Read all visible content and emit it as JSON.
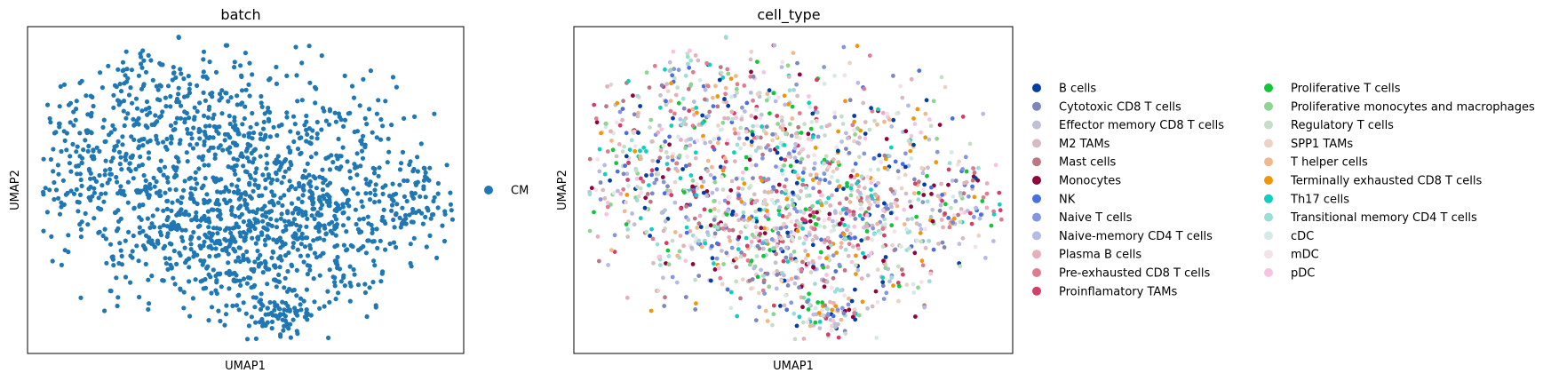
{
  "chart_data": [
    {
      "type": "scatter",
      "title": "batch",
      "xlabel": "UMAP1",
      "ylabel": "UMAP2",
      "xlim": [
        0,
        1
      ],
      "ylim": [
        0,
        1
      ],
      "grid": false,
      "legend_position": "right",
      "series": [
        {
          "name": "CM",
          "color": "#1f77b4"
        }
      ]
    },
    {
      "type": "scatter",
      "title": "cell_type",
      "xlabel": "UMAP1",
      "ylabel": "UMAP2",
      "xlim": [
        0,
        1
      ],
      "ylim": [
        0,
        1
      ],
      "grid": false,
      "legend_position": "right",
      "series": [
        {
          "name": "B cells",
          "color": "#023fa5"
        },
        {
          "name": "Cytotoxic CD8 T cells",
          "color": "#7d87b9"
        },
        {
          "name": "Effector memory CD8 T cells",
          "color": "#bec1d4"
        },
        {
          "name": "M2 TAMs",
          "color": "#d6bcc0"
        },
        {
          "name": "Mast cells",
          "color": "#bb7784"
        },
        {
          "name": "Monocytes",
          "color": "#8e063b"
        },
        {
          "name": "NK",
          "color": "#4a6fe3"
        },
        {
          "name": "Naive T cells",
          "color": "#8595e1"
        },
        {
          "name": "Naive-memory CD4 T cells",
          "color": "#b5bbe3"
        },
        {
          "name": "Plasma B cells",
          "color": "#e6afb9"
        },
        {
          "name": "Pre-exhausted CD8 T cells",
          "color": "#e07b91"
        },
        {
          "name": "Proinflamatory TAMs",
          "color": "#d33f6a"
        },
        {
          "name": "Proliferative T cells",
          "color": "#11c638"
        },
        {
          "name": "Proliferative monocytes and macrophages",
          "color": "#8dd593"
        },
        {
          "name": "Regulatory T cells",
          "color": "#c6dec7"
        },
        {
          "name": "SPP1 TAMs",
          "color": "#ead3c6"
        },
        {
          "name": "T helper cells",
          "color": "#f0b98d"
        },
        {
          "name": "Terminally exhausted CD8 T cells",
          "color": "#ef9708"
        },
        {
          "name": "Th17 cells",
          "color": "#0fcfc0"
        },
        {
          "name": "Transitional memory CD4 T cells",
          "color": "#9cded6"
        },
        {
          "name": "cDC",
          "color": "#d5eae7"
        },
        {
          "name": "mDC",
          "color": "#f3e1eb"
        },
        {
          "name": "pDC",
          "color": "#f6c4e1"
        }
      ]
    }
  ]
}
